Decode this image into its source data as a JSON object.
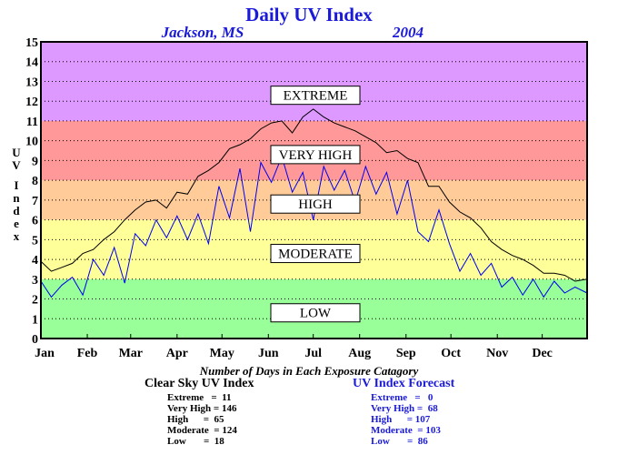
{
  "chart_data": {
    "type": "line",
    "title": "Daily UV Index",
    "subtitle_left": "Jackson, MS",
    "subtitle_right": "2004",
    "ylabel": "UV Index",
    "ylim": [
      0,
      15
    ],
    "yticks": [
      "0",
      "1",
      "2",
      "3",
      "4",
      "5",
      "6",
      "7",
      "8",
      "9",
      "10",
      "11",
      "12",
      "13",
      "14",
      "15"
    ],
    "xlim": [
      1,
      366
    ],
    "xticks": [
      {
        "label": "Jan",
        "day": 1
      },
      {
        "label": "Feb",
        "day": 32
      },
      {
        "label": "Mar",
        "day": 61
      },
      {
        "label": "Apr",
        "day": 92
      },
      {
        "label": "May",
        "day": 122
      },
      {
        "label": "Jun",
        "day": 153
      },
      {
        "label": "Jul",
        "day": 183
      },
      {
        "label": "Aug",
        "day": 214
      },
      {
        "label": "Sep",
        "day": 245
      },
      {
        "label": "Oct",
        "day": 275
      },
      {
        "label": "Nov",
        "day": 306
      },
      {
        "label": "Dec",
        "day": 336
      }
    ],
    "grid": true,
    "bands": [
      {
        "label": "LOW",
        "from": 0,
        "to": 3,
        "color": "#99ff99",
        "label_y": 1.3
      },
      {
        "label": "MODERATE",
        "from": 3,
        "to": 6,
        "color": "#ffff99",
        "label_y": 4.3
      },
      {
        "label": "HIGH",
        "from": 6,
        "to": 8,
        "color": "#ffcc99",
        "label_y": 6.8
      },
      {
        "label": "VERY HIGH",
        "from": 8,
        "to": 11,
        "color": "#ff9999",
        "label_y": 9.3
      },
      {
        "label": "EXTREME",
        "from": 11,
        "to": 15,
        "color": "#dd99ff",
        "label_y": 12.3
      }
    ],
    "series": [
      {
        "name": "Clear Sky UV Index",
        "color": "#000000",
        "x": [
          1,
          8,
          15,
          22,
          29,
          36,
          43,
          50,
          57,
          64,
          71,
          78,
          85,
          92,
          99,
          106,
          113,
          120,
          127,
          134,
          141,
          148,
          155,
          162,
          169,
          176,
          183,
          190,
          197,
          204,
          211,
          218,
          225,
          232,
          239,
          246,
          253,
          260,
          267,
          274,
          281,
          288,
          295,
          302,
          309,
          316,
          323,
          330,
          337,
          344,
          351,
          358,
          366
        ],
        "values": [
          3.9,
          3.4,
          3.6,
          3.8,
          4.3,
          4.5,
          5.0,
          5.4,
          6.0,
          6.5,
          6.9,
          7.0,
          6.6,
          7.4,
          7.3,
          8.2,
          8.5,
          8.9,
          9.6,
          9.8,
          10.1,
          10.6,
          10.9,
          11.0,
          10.4,
          11.2,
          11.6,
          11.2,
          10.9,
          10.7,
          10.5,
          10.2,
          9.9,
          9.4,
          9.5,
          9.1,
          8.9,
          7.7,
          7.7,
          6.9,
          6.4,
          6.1,
          5.6,
          4.9,
          4.5,
          4.2,
          4.0,
          3.7,
          3.3,
          3.3,
          3.2,
          2.9,
          3.0
        ]
      },
      {
        "name": "UV Index Forecast",
        "color": "#0000ee",
        "x": [
          1,
          8,
          15,
          22,
          29,
          36,
          43,
          50,
          57,
          64,
          71,
          78,
          85,
          92,
          99,
          106,
          113,
          120,
          127,
          134,
          141,
          148,
          155,
          162,
          169,
          176,
          183,
          190,
          197,
          204,
          211,
          218,
          225,
          232,
          239,
          246,
          253,
          260,
          267,
          274,
          281,
          288,
          295,
          302,
          309,
          316,
          323,
          330,
          337,
          344,
          351,
          358,
          366
        ],
        "values": [
          2.9,
          2.1,
          2.7,
          3.1,
          2.2,
          4.0,
          3.2,
          4.6,
          2.8,
          5.3,
          4.7,
          6.0,
          5.1,
          6.2,
          5.0,
          6.3,
          4.8,
          7.7,
          6.1,
          8.6,
          5.4,
          8.9,
          7.9,
          9.2,
          7.4,
          8.4,
          6.0,
          8.7,
          7.5,
          8.5,
          6.9,
          8.7,
          7.3,
          8.4,
          6.3,
          8.0,
          5.4,
          4.9,
          6.5,
          4.8,
          3.4,
          4.3,
          3.2,
          3.8,
          2.6,
          3.1,
          2.2,
          3.0,
          2.1,
          2.9,
          2.3,
          2.6,
          2.3
        ]
      }
    ]
  },
  "footer": {
    "label": "Number of Days in Each Exposure Catagory",
    "clear_sky": {
      "title": "Clear Sky UV Index",
      "rows": [
        {
          "name": "Extreme",
          "value": "11"
        },
        {
          "name": "Very High",
          "value": "146"
        },
        {
          "name": "High",
          "value": "65"
        },
        {
          "name": "Moderate",
          "value": "124"
        },
        {
          "name": "Low",
          "value": "18"
        }
      ]
    },
    "forecast": {
      "title": "UV Index Forecast",
      "rows": [
        {
          "name": "Extreme",
          "value": "0"
        },
        {
          "name": "Very High",
          "value": "68"
        },
        {
          "name": "High",
          "value": "107"
        },
        {
          "name": "Moderate",
          "value": "103"
        },
        {
          "name": "Low",
          "value": "86"
        }
      ]
    }
  },
  "colors": {
    "title": "#1a1ad8",
    "subtitle": "#1a1ad8",
    "forecast_text": "#1a1ad8"
  }
}
